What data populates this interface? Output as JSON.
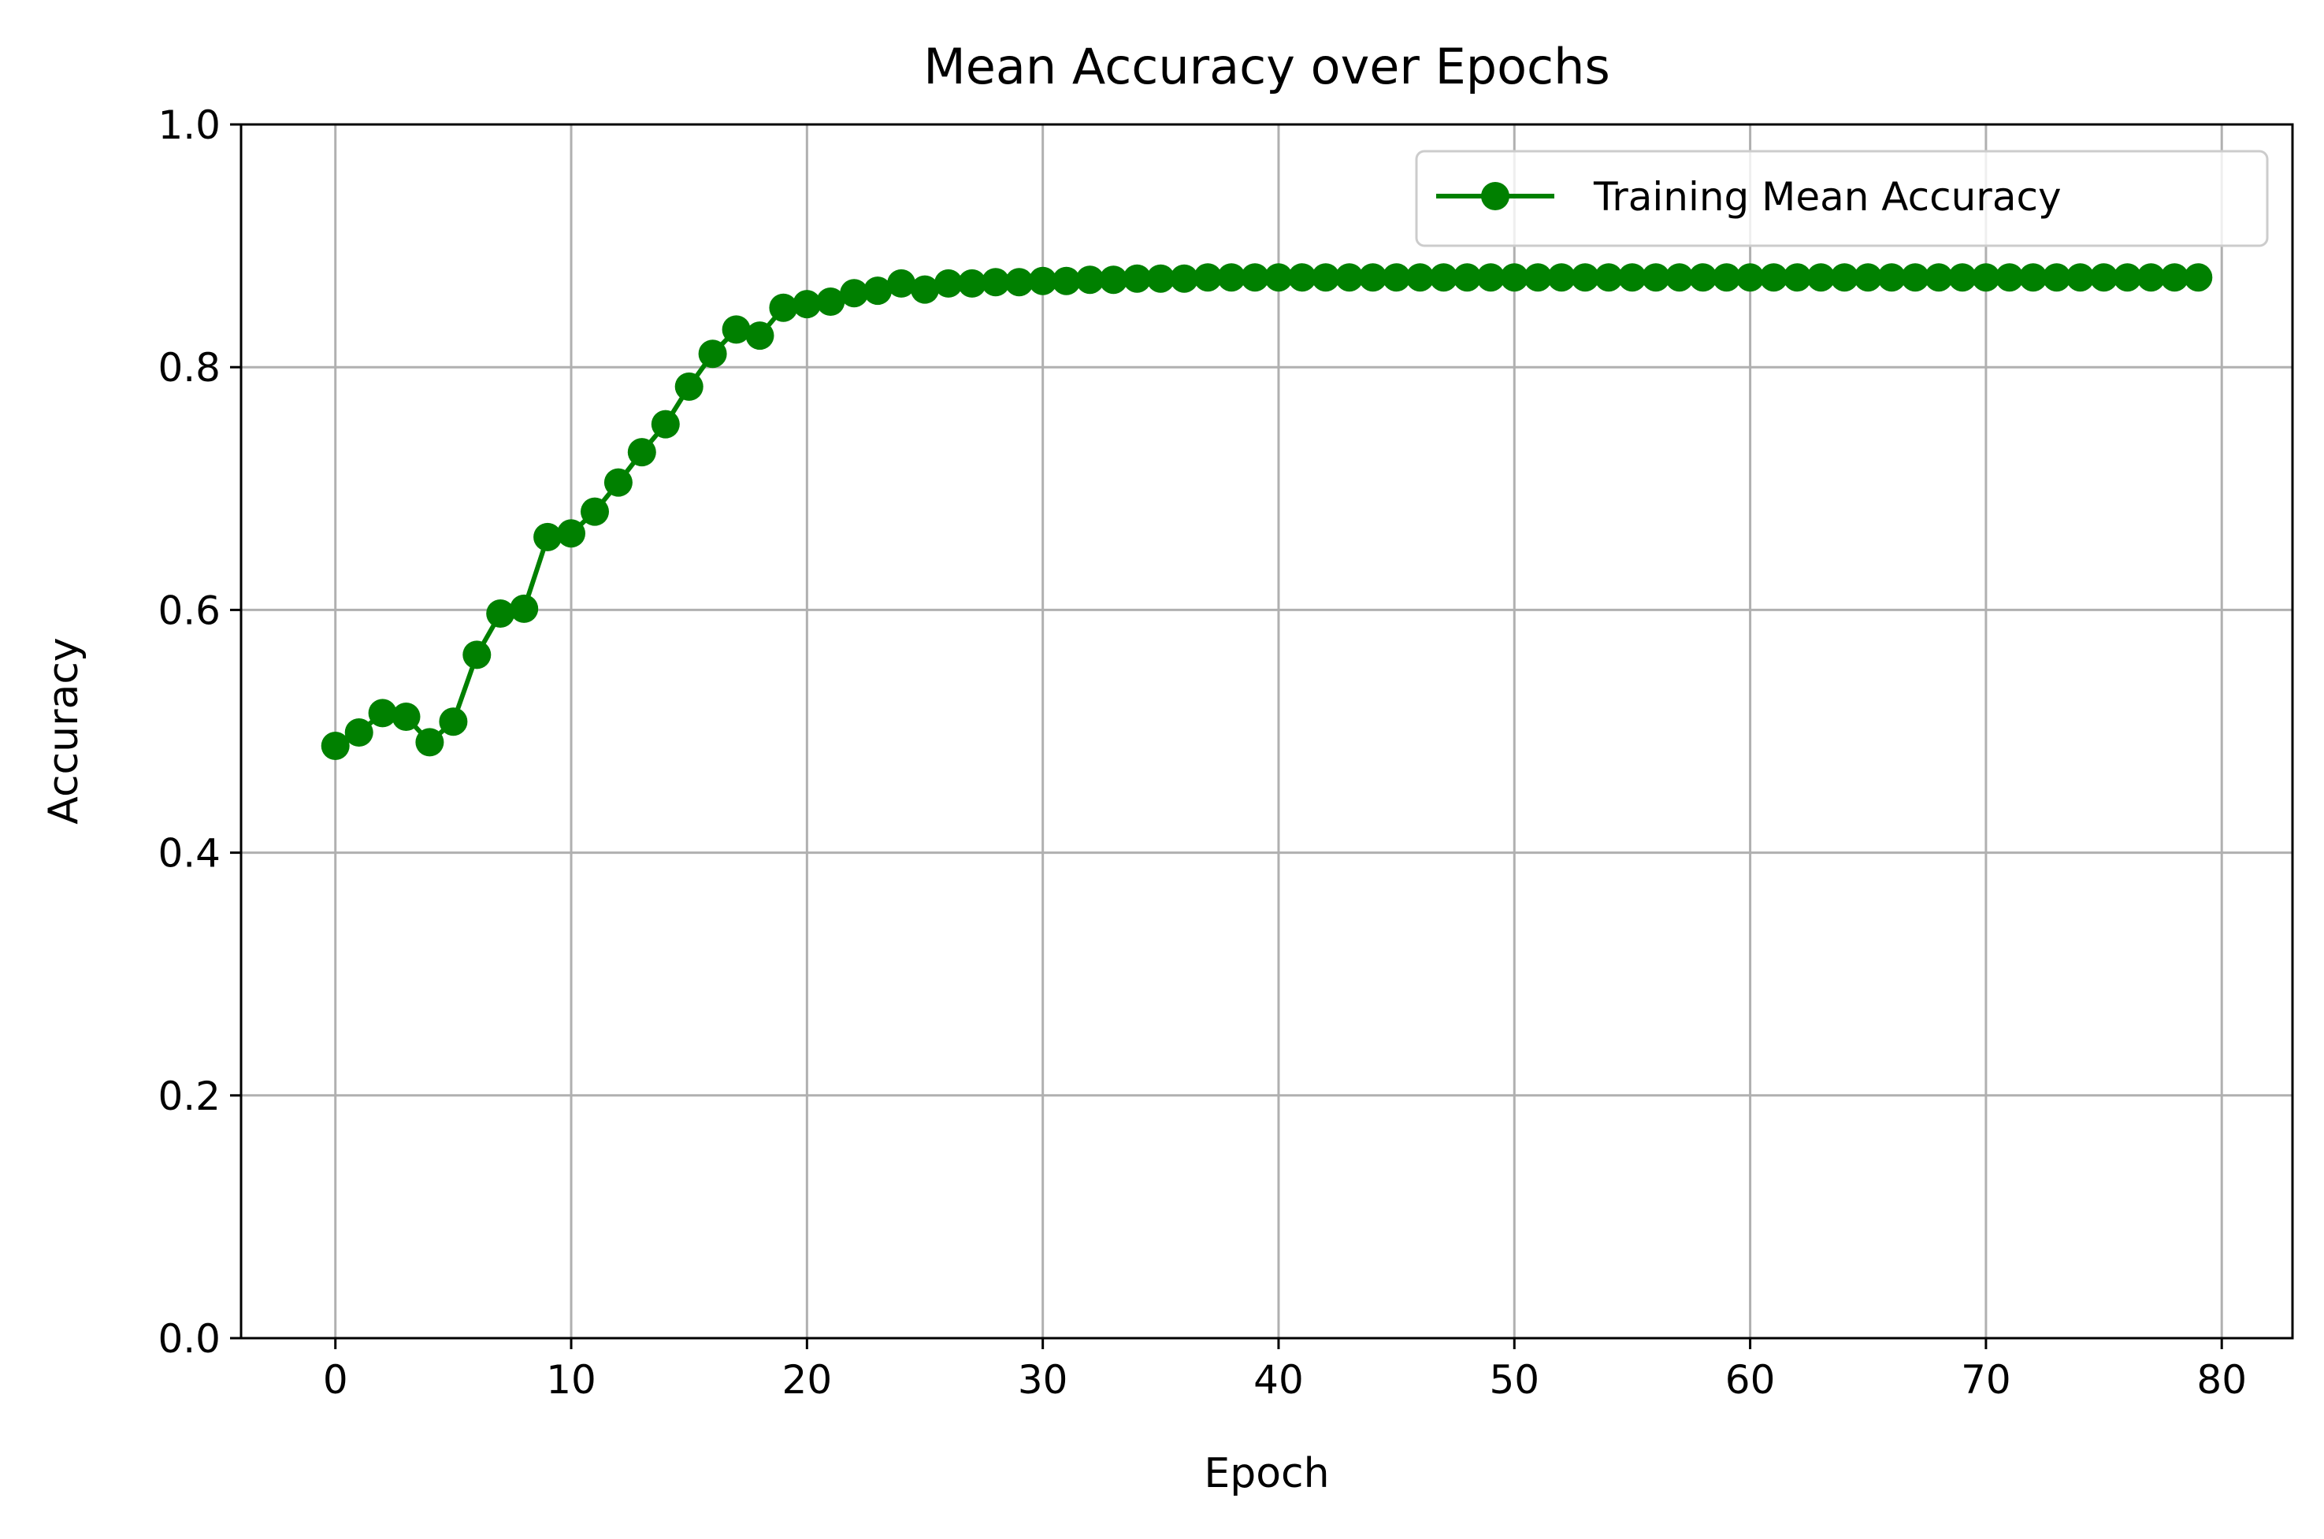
{
  "chart_data": {
    "type": "line",
    "title": "Mean Accuracy over Epochs",
    "xlabel": "Epoch",
    "ylabel": "Accuracy",
    "xlim": [
      -4,
      83
    ],
    "ylim": [
      0,
      1
    ],
    "xticks": [
      0,
      10,
      20,
      30,
      40,
      50,
      60,
      70,
      80
    ],
    "xtick_labels": [
      "0",
      "10",
      "20",
      "30",
      "40",
      "50",
      "60",
      "70",
      "80"
    ],
    "yticks": [
      0.0,
      0.2,
      0.4,
      0.6,
      0.8,
      1.0
    ],
    "ytick_labels": [
      "0.0",
      "0.2",
      "0.4",
      "0.6",
      "0.8",
      "1.0"
    ],
    "grid": true,
    "legend_position": "top-right",
    "colors": {
      "series": "#008000",
      "grid": "#b0b0b0",
      "axes": "#000000",
      "legend_border": "#cccccc"
    },
    "series": [
      {
        "name": "Training Mean Accuracy",
        "marker": "circle",
        "color": "#008000",
        "x": [
          0,
          1,
          2,
          3,
          4,
          5,
          6,
          7,
          8,
          9,
          10,
          11,
          12,
          13,
          14,
          15,
          16,
          17,
          18,
          19,
          20,
          21,
          22,
          23,
          24,
          25,
          26,
          27,
          28,
          29,
          30,
          31,
          32,
          33,
          34,
          35,
          36,
          37,
          38,
          39,
          40,
          41,
          42,
          43,
          44,
          45,
          46,
          47,
          48,
          49,
          50,
          51,
          52,
          53,
          54,
          55,
          56,
          57,
          58,
          59,
          60,
          61,
          62,
          63,
          64,
          65,
          66,
          67,
          68,
          69,
          70,
          71,
          72,
          73,
          74,
          75,
          76,
          77,
          78,
          79
        ],
        "y": [
          0.488,
          0.499,
          0.515,
          0.512,
          0.491,
          0.508,
          0.563,
          0.597,
          0.601,
          0.66,
          0.663,
          0.681,
          0.705,
          0.73,
          0.753,
          0.784,
          0.811,
          0.831,
          0.826,
          0.849,
          0.852,
          0.854,
          0.861,
          0.863,
          0.869,
          0.864,
          0.869,
          0.869,
          0.87,
          0.87,
          0.871,
          0.871,
          0.872,
          0.872,
          0.873,
          0.873,
          0.873,
          0.874,
          0.874,
          0.874,
          0.874,
          0.874,
          0.874,
          0.874,
          0.874,
          0.874,
          0.874,
          0.874,
          0.874,
          0.874,
          0.874,
          0.874,
          0.874,
          0.874,
          0.874,
          0.874,
          0.874,
          0.874,
          0.874,
          0.874,
          0.874,
          0.874,
          0.874,
          0.874,
          0.874,
          0.874,
          0.874,
          0.874,
          0.874,
          0.874,
          0.874,
          0.874,
          0.874,
          0.874,
          0.874,
          0.874,
          0.874,
          0.874,
          0.874,
          0.874
        ]
      }
    ]
  }
}
